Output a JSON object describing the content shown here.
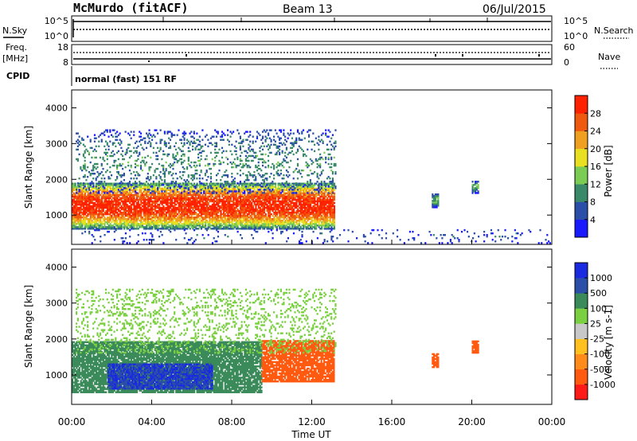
{
  "header": {
    "station": "McMurdo (fitACF)",
    "beam": "Beam 13",
    "date": "06/Jul/2015"
  },
  "status_panels": {
    "nsky_label": "N.Sky",
    "nsearch_label": "N.Search",
    "noise_ticks_left": [
      "10^5",
      "10^0"
    ],
    "noise_ticks_right": [
      "10^5",
      "10^0"
    ],
    "freq_label_top": "Freq.",
    "freq_label_unit": "[MHz]",
    "freq_ticks": [
      "18",
      "8"
    ],
    "nave_label": "Nave",
    "nave_ticks": [
      "60",
      "0"
    ],
    "cpid_label": "CPID",
    "cpid_text": "normal (fast) 151 RF"
  },
  "colors": {
    "power": [
      "#1a1aff",
      "#2b4ea8",
      "#3a8a6a",
      "#7acc55",
      "#e8e020",
      "#f0a020",
      "#f05a10",
      "#ff2200"
    ],
    "velocity": [
      "#ff1a1a",
      "#ff5a10",
      "#ff8c1a",
      "#ffc020",
      "#c8c8c8",
      "#7ad040",
      "#3a8a5a",
      "#2b4ea8",
      "#1a2ae0"
    ]
  },
  "chart_data": [
    {
      "type": "heatmap",
      "title": "",
      "xlabel": "Time UT",
      "ylabel": "Slant Range [km]",
      "x_ticks": [
        "00:00",
        "04:00",
        "08:00",
        "12:00",
        "16:00",
        "20:00",
        "00:00"
      ],
      "y_ticks": [
        "1000",
        "2000",
        "3000",
        "4000"
      ],
      "xlim_hours": [
        0,
        24
      ],
      "ylim_km": [
        180,
        4500
      ],
      "colorbar": {
        "label": "Power [dB]",
        "tick_labels": [
          "4",
          "8",
          "12",
          "16",
          "20",
          "24",
          "28"
        ],
        "range": [
          0,
          32
        ]
      },
      "regions": [
        {
          "name": "main echo band",
          "t_start": 0.0,
          "t_end": 13.1,
          "range_km": [
            600,
            1900
          ],
          "level_db": 30
        },
        {
          "name": "upper scatter",
          "t_start": 0.2,
          "t_end": 13.2,
          "range_km": [
            1600,
            3400
          ],
          "level_db": 10
        },
        {
          "name": "isolated echo 18UT",
          "t_start": 18.0,
          "t_end": 18.3,
          "range_km": [
            1200,
            1600
          ],
          "level_db": 12
        },
        {
          "name": "isolated echo 20UT",
          "t_start": 20.0,
          "t_end": 20.3,
          "range_km": [
            1600,
            1950
          ],
          "level_db": 12
        },
        {
          "name": "near-range ground scatter",
          "t_start": 0.0,
          "t_end": 24.0,
          "range_km": [
            200,
            600
          ],
          "level_db": 6
        }
      ]
    },
    {
      "type": "heatmap",
      "title": "",
      "xlabel": "Time UT",
      "ylabel": "Slant Range [km]",
      "x_ticks": [
        "00:00",
        "04:00",
        "08:00",
        "12:00",
        "16:00",
        "20:00",
        "00:00"
      ],
      "y_ticks": [
        "1000",
        "2000",
        "3000",
        "4000"
      ],
      "xlim_hours": [
        0,
        24
      ],
      "ylim_km": [
        180,
        4500
      ],
      "colorbar": {
        "label": "Velocity [m s-1]",
        "tick_labels": [
          "1000",
          "500",
          "100",
          "25",
          "-25",
          "-100",
          "-500",
          "-1000"
        ],
        "range": [
          -1000,
          1000
        ]
      },
      "regions": [
        {
          "name": "main echo band",
          "t_start": 0.0,
          "t_end": 9.5,
          "range_km": [
            500,
            1900
          ],
          "velocity_ms": 300
        },
        {
          "name": "strong positive core",
          "t_start": 1.8,
          "t_end": 7.0,
          "range_km": [
            600,
            1300
          ],
          "velocity_ms": 900
        },
        {
          "name": "receding band",
          "t_start": 9.5,
          "t_end": 13.1,
          "range_km": [
            800,
            1950
          ],
          "velocity_ms": -300
        },
        {
          "name": "upper scatter",
          "t_start": 0.2,
          "t_end": 13.2,
          "range_km": [
            1600,
            3400
          ],
          "velocity_ms": 50
        },
        {
          "name": "isolated echo 18UT",
          "t_start": 18.0,
          "t_end": 18.3,
          "range_km": [
            1200,
            1600
          ],
          "velocity_ms": -300
        },
        {
          "name": "isolated echo 20UT",
          "t_start": 20.0,
          "t_end": 20.3,
          "range_km": [
            1600,
            1950
          ],
          "velocity_ms": -300
        }
      ]
    }
  ]
}
